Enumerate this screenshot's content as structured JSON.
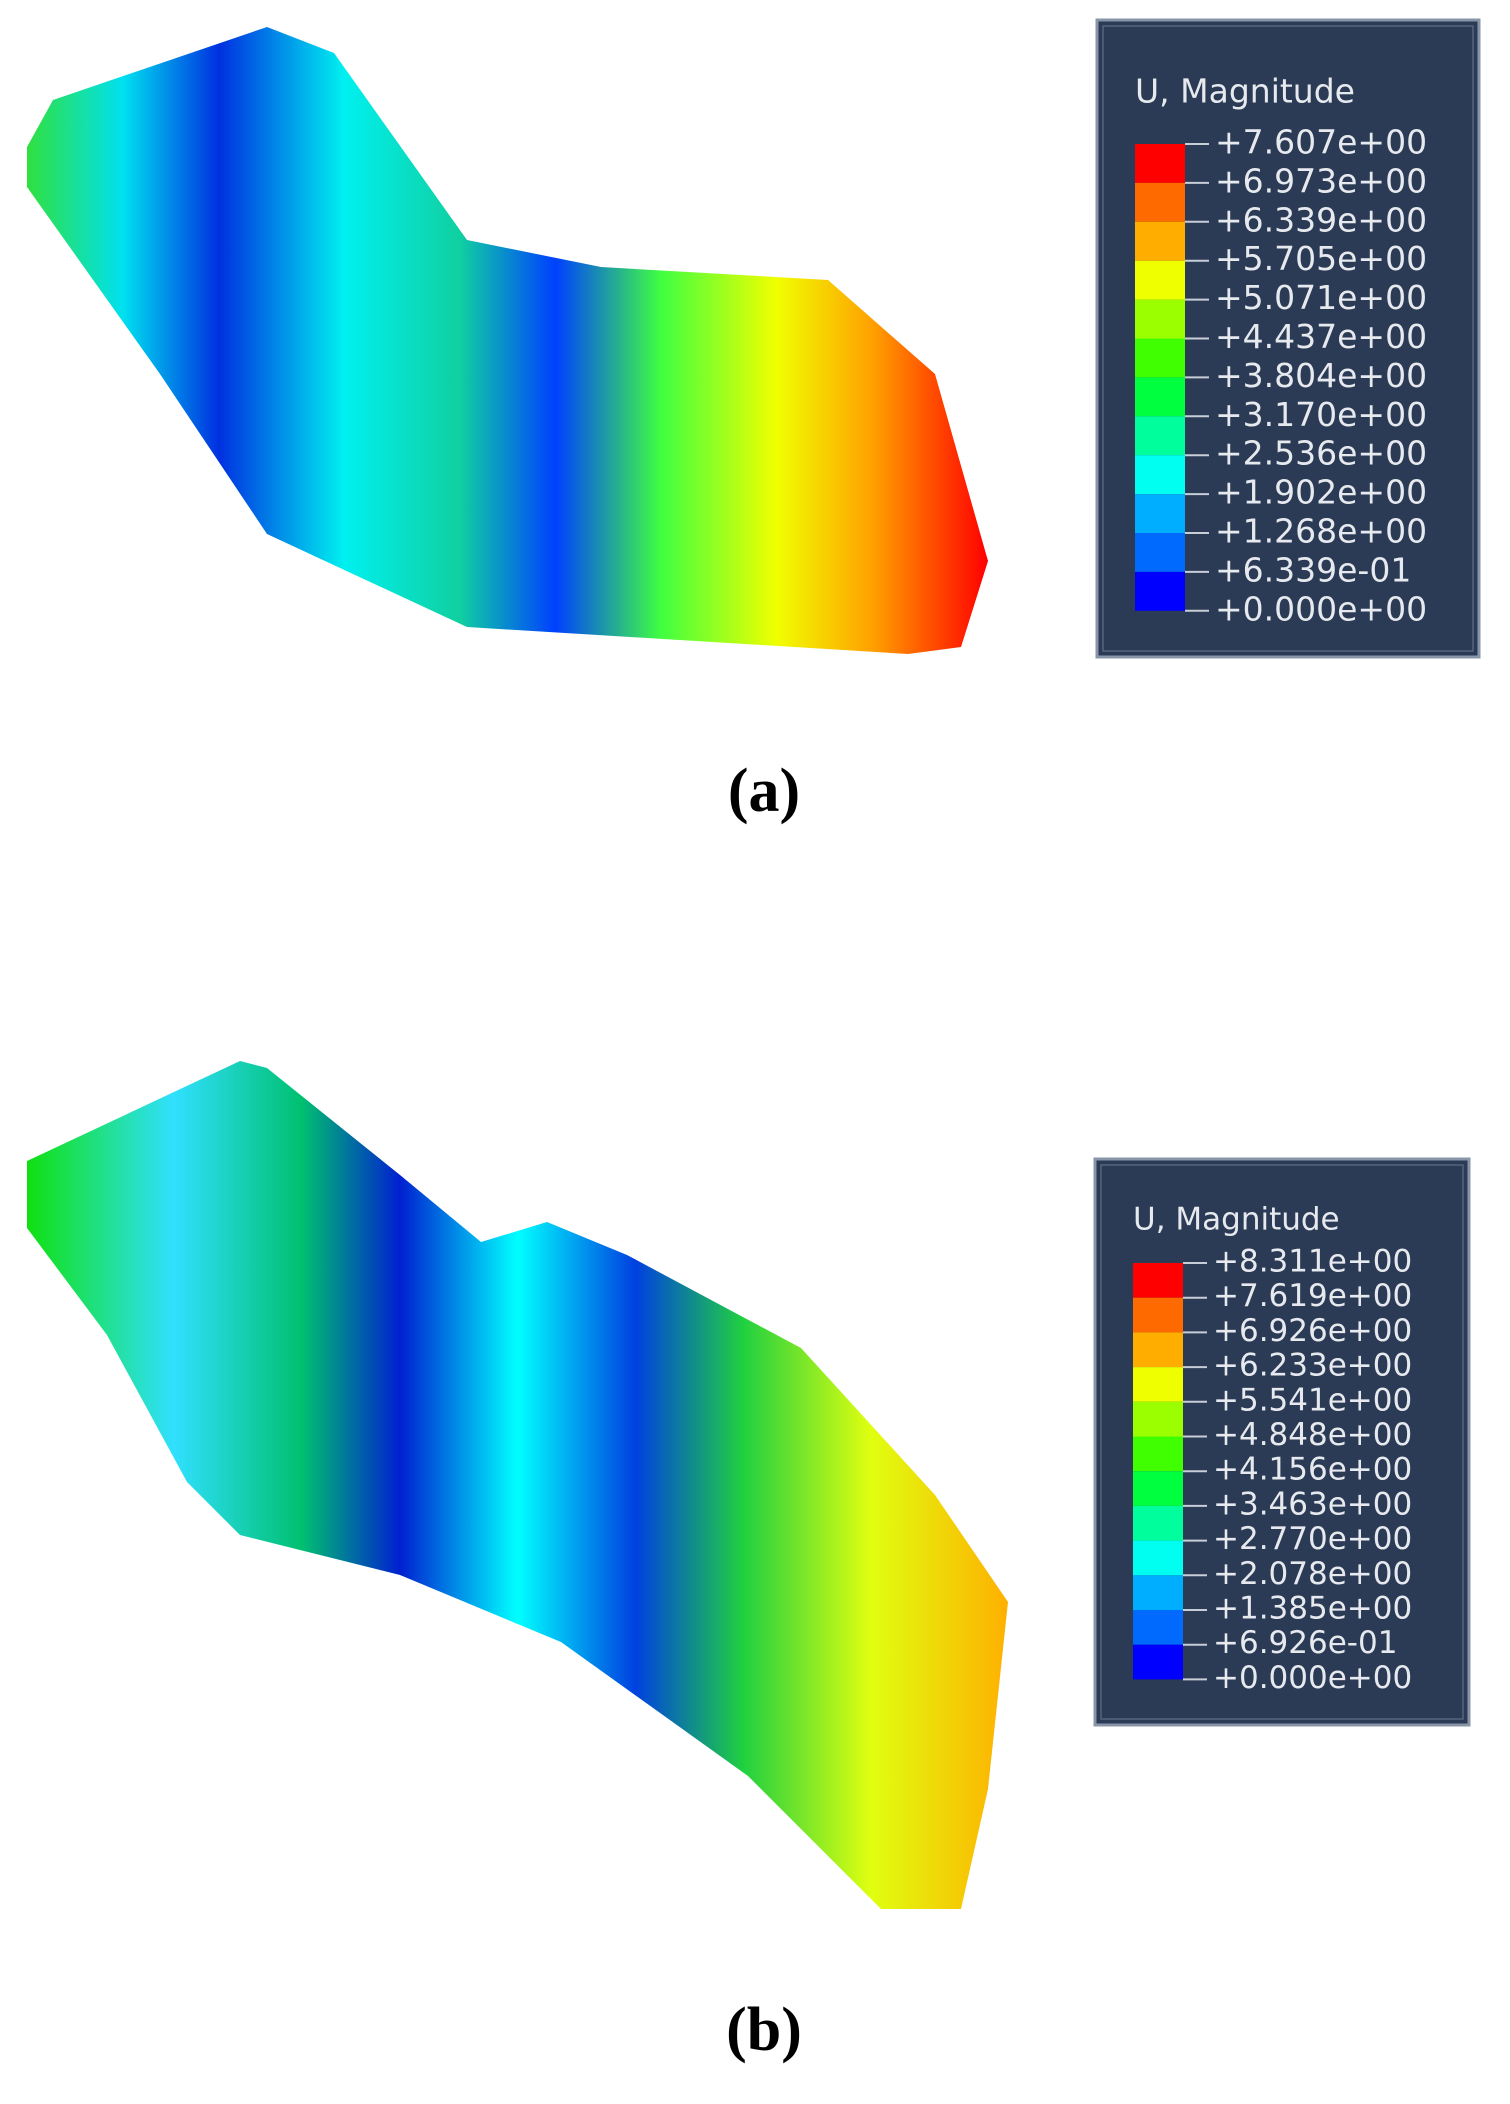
{
  "panels": [
    {
      "legend": {
        "title": "U, Magnitude",
        "labels": [
          "+7.607e+00",
          "+6.973e+00",
          "+6.339e+00",
          "+5.705e+00",
          "+5.071e+00",
          "+4.437e+00",
          "+3.804e+00",
          "+3.170e+00",
          "+2.536e+00",
          "+1.902e+00",
          "+1.268e+00",
          "+6.339e-01",
          "+0.000e+00"
        ],
        "colors": [
          "#ff0000",
          "#ff6a00",
          "#ffae00",
          "#f0ff00",
          "#9cff00",
          "#3fff00",
          "#00ff3f",
          "#00ff9c",
          "#00fff0",
          "#00aeff",
          "#006aff",
          "#0000ff"
        ]
      },
      "caption": "(a)"
    },
    {
      "legend": {
        "title": "U, Magnitude",
        "labels": [
          "+8.311e+00",
          "+7.619e+00",
          "+6.926e+00",
          "+6.233e+00",
          "+5.541e+00",
          "+4.848e+00",
          "+4.156e+00",
          "+3.463e+00",
          "+2.770e+00",
          "+2.078e+00",
          "+1.385e+00",
          "+6.926e-01",
          "+0.000e+00"
        ],
        "colors": [
          "#ff0000",
          "#ff6a00",
          "#ffae00",
          "#f0ff00",
          "#9cff00",
          "#3fff00",
          "#00ff3f",
          "#00ff9c",
          "#00fff0",
          "#00aeff",
          "#006aff",
          "#0000ff"
        ]
      },
      "caption": "(b)"
    }
  ]
}
